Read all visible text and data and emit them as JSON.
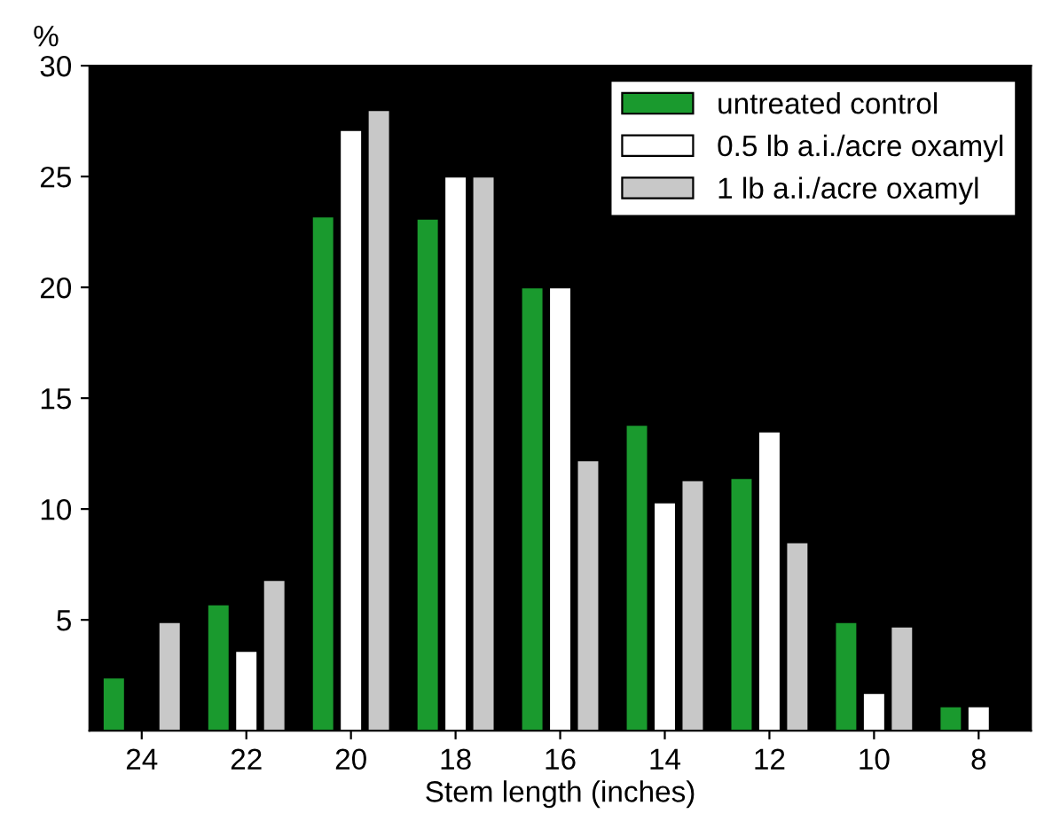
{
  "chart_data": {
    "type": "bar",
    "xlabel": "Stem length (inches)",
    "ylabel": "%",
    "categories": [
      "24",
      "22",
      "20",
      "18",
      "16",
      "14",
      "12",
      "10",
      "8"
    ],
    "series": [
      {
        "name": "untreated control",
        "color": "#1a9a2e",
        "values": [
          2.4,
          5.7,
          23.2,
          23.1,
          20,
          13.8,
          11.4,
          4.9,
          1.1
        ]
      },
      {
        "name": "0.5 lb a.i./acre oxamyl",
        "color": "#ffffff",
        "values": [
          null,
          3.6,
          27.1,
          25,
          20,
          10.3,
          13.5,
          1.7,
          1.1
        ]
      },
      {
        "name": "1 lb a.i./acre oxamyl",
        "color": "#c8c8c8",
        "values": [
          4.9,
          6.8,
          28,
          25,
          12.2,
          11.3,
          8.5,
          4.7,
          null
        ]
      }
    ],
    "ylim": [
      0,
      30
    ],
    "yticks": [
      5,
      10,
      15,
      20,
      25,
      30
    ],
    "grid": false,
    "legend": "top right"
  }
}
